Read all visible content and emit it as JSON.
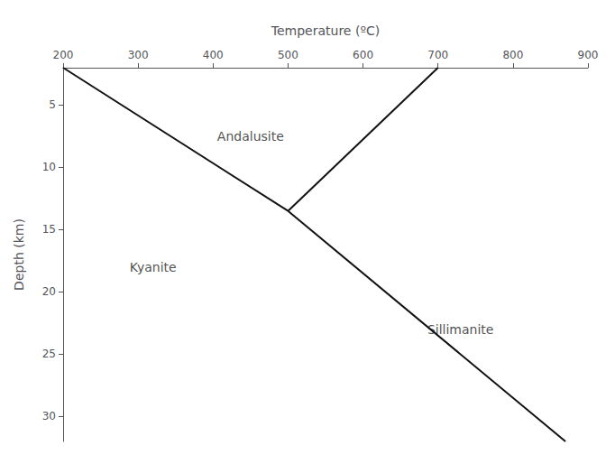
{
  "chart_data": {
    "type": "line",
    "xlabel": "Temperature (ºC)",
    "ylabel": "Depth (km)",
    "color": "#111111",
    "series": [
      {
        "x": [
          200,
          500
        ],
        "values": [
          2.0,
          13.5
        ]
      },
      {
        "x": [
          700,
          500
        ],
        "values": [
          2.0,
          13.5
        ]
      },
      {
        "x": [
          500,
          870
        ],
        "values": [
          13.5,
          32
        ]
      }
    ],
    "annotations": [
      {
        "text": "Andalusite",
        "x": 450,
        "y": 7.5
      },
      {
        "text": "Kyanite",
        "x": 320,
        "y": 18
      },
      {
        "text": "Sillimanite",
        "x": 730,
        "y": 23
      }
    ],
    "xlim": [
      200,
      900
    ],
    "xticks": [
      200,
      300,
      400,
      500,
      600,
      700,
      800,
      900
    ],
    "ylim": [
      32,
      2
    ],
    "yticks": [
      5,
      10,
      15,
      20,
      25,
      30
    ],
    "grid": false
  }
}
